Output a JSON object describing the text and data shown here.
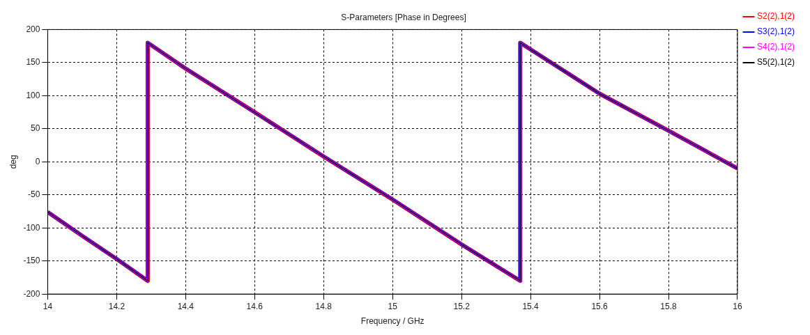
{
  "chart_data": {
    "type": "line",
    "title": "S-Parameters [Phase in Degrees]",
    "xlabel": "Frequency / GHz",
    "ylabel": "deg",
    "x": [
      14,
      14.1,
      14.2,
      14.29,
      14.29,
      14.4,
      14.6,
      14.8,
      15,
      15.2,
      15.37,
      15.37,
      15.6,
      15.8,
      16
    ],
    "series": [
      {
        "name": "S2(2),1(2)",
        "color": "#ff0000",
        "values": [
          -76,
          -112,
          -147,
          -180,
          180,
          141,
          75,
          8,
          -57,
          -125,
          -180,
          180,
          103,
          47,
          -10
        ]
      },
      {
        "name": "S3(2),1(2)",
        "color": "#0000ff",
        "values": [
          -76,
          -112,
          -147,
          -180,
          180,
          141,
          75,
          8,
          -57,
          -125,
          -180,
          180,
          103,
          47,
          -10
        ]
      },
      {
        "name": "S4(2),1(2)",
        "color": "#ff00ff",
        "values": [
          -76,
          -112,
          -147,
          -180,
          180,
          141,
          75,
          8,
          -57,
          -125,
          -180,
          180,
          103,
          47,
          -10
        ]
      },
      {
        "name": "S5(2),1(2)",
        "color": "#000000",
        "values": [
          -76,
          -112,
          -147,
          -180,
          180,
          141,
          75,
          8,
          -57,
          -125,
          -180,
          180,
          103,
          47,
          -10
        ]
      }
    ],
    "xlim": [
      14,
      16
    ],
    "xticks": [
      14,
      14.2,
      14.4,
      14.6,
      14.8,
      15,
      15.2,
      15.4,
      15.6,
      15.8,
      16
    ],
    "ylim": [
      -200,
      200
    ],
    "yticks": [
      -200,
      -150,
      -100,
      -50,
      0,
      50,
      100,
      150,
      200
    ],
    "grid": true,
    "legend": "top right",
    "marker": "none",
    "line_style": "solid"
  }
}
